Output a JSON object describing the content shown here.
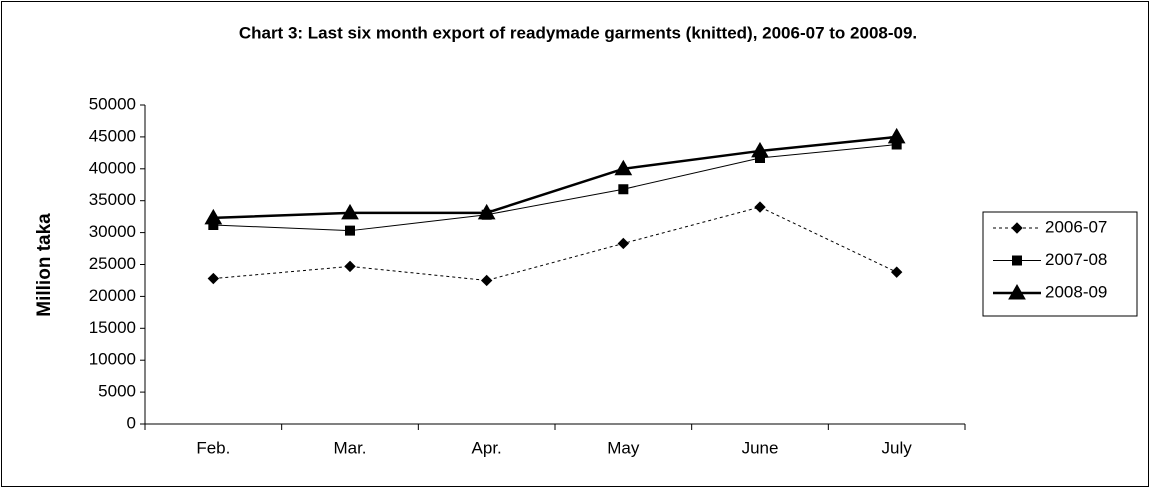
{
  "chart_data": {
    "type": "line",
    "title": "Chart 3: Last six month export of readymade garments (knitted), 2006-07 to 2008-09.",
    "y_label": "Million taka",
    "categories": [
      "Feb.",
      "Mar.",
      "Apr.",
      "May",
      "June",
      "July"
    ],
    "series": [
      {
        "name": "2006-07",
        "color": "#000000",
        "line_style": "dotted",
        "line_width": 1,
        "marker": "diamond",
        "values": [
          22800,
          24700,
          22500,
          28300,
          34000,
          23800
        ]
      },
      {
        "name": "2007-08",
        "color": "#000000",
        "line_style": "solid",
        "line_width": 1,
        "marker": "square",
        "values": [
          31200,
          30300,
          32800,
          36800,
          41700,
          43800
        ]
      },
      {
        "name": "2008-09",
        "color": "#000000",
        "line_style": "solid",
        "line_width": 2.5,
        "marker": "triangle",
        "values": [
          32300,
          33100,
          33100,
          40000,
          42800,
          45000
        ]
      }
    ],
    "ylim": [
      0,
      50000
    ],
    "yticks": [
      0,
      5000,
      10000,
      15000,
      20000,
      25000,
      30000,
      35000,
      40000,
      45000,
      50000
    ],
    "grid": false,
    "legend": "right"
  }
}
